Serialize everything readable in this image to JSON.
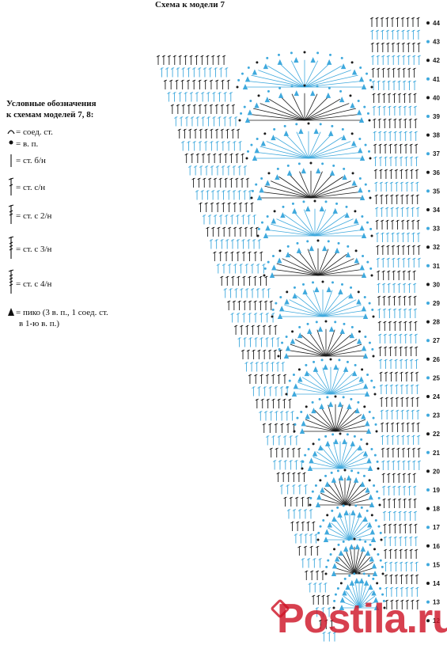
{
  "title": "Схема к модели 7",
  "legend": {
    "heading_line1": "Условные обозначения",
    "heading_line2": "к схемам моделей 7, 8:",
    "items": [
      {
        "symbol": "connecting-stitch",
        "label": "= соед. ст."
      },
      {
        "symbol": "chain-stitch",
        "label": "= в. п."
      },
      {
        "symbol": "single-crochet",
        "label": "= ст. б/н"
      },
      {
        "symbol": "double-crochet",
        "label": "= ст. с/н"
      },
      {
        "symbol": "treble-crochet",
        "label": "= ст. с 2/н"
      },
      {
        "symbol": "double-treble-crochet",
        "label": "= ст. с 3/н"
      },
      {
        "symbol": "triple-treble-crochet",
        "label": "= ст. с 4/н"
      },
      {
        "symbol": "picot",
        "label": "= пико (3 в. п., 1 соед. ст.",
        "label_line2": "в 1-ю в. п.)"
      }
    ]
  },
  "row_numbers": [
    "44",
    "43",
    "42",
    "41",
    "40",
    "39",
    "38",
    "37",
    "36",
    "35",
    "34",
    "33",
    "32",
    "31",
    "30",
    "29",
    "28",
    "27",
    "26",
    "25",
    "24",
    "23",
    "22",
    "21",
    "20",
    "19",
    "18",
    "17",
    "16",
    "15",
    "14",
    "13",
    "12"
  ],
  "colors": {
    "blue": "#3fa9dd",
    "dark": "#1a1a1a",
    "watermark": "#ce1628"
  },
  "watermark": "Postila.ru"
}
